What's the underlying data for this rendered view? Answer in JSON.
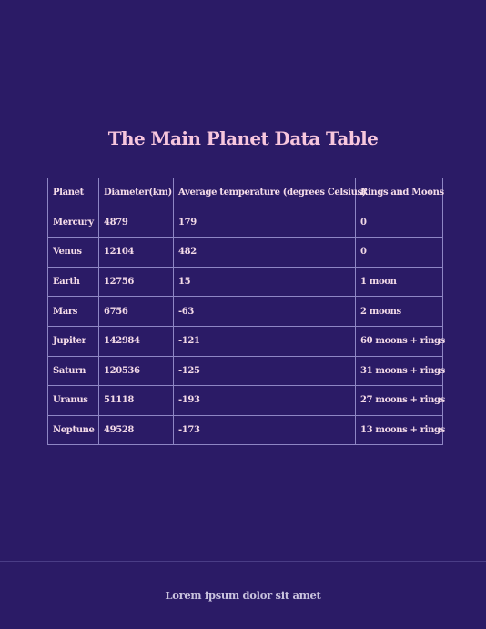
{
  "title": "The Main Planet Data Table",
  "table": {
    "headers": [
      "Planet",
      "Diameter(km)",
      "Average temperature (degrees Celsius)",
      "Rings and Moons"
    ],
    "rows": [
      [
        "Mercury",
        "4879",
        "179",
        "0"
      ],
      [
        "Venus",
        "12104",
        "482",
        "0"
      ],
      [
        "Earth",
        "12756",
        "15",
        "1 moon"
      ],
      [
        "Mars",
        "6756",
        "-63",
        "2 moons"
      ],
      [
        "Jupiter",
        "142984",
        "-121",
        "60 moons + rings"
      ],
      [
        "Saturn",
        "120536",
        "-125",
        "31 moons + rings"
      ],
      [
        "Uranus",
        "51118",
        "-193",
        "27 moons + rings"
      ],
      [
        "Neptune",
        "49528",
        "-173",
        "13 moons + rings"
      ]
    ]
  },
  "footer": {
    "text": "Lorem ipsum dolor sit amet"
  },
  "colors": {
    "background": "#2b1b66",
    "title": "#f7c6dd",
    "table_text": "#f4dbe8",
    "table_border": "#8e86c4",
    "footer_text": "#c9c3de"
  }
}
